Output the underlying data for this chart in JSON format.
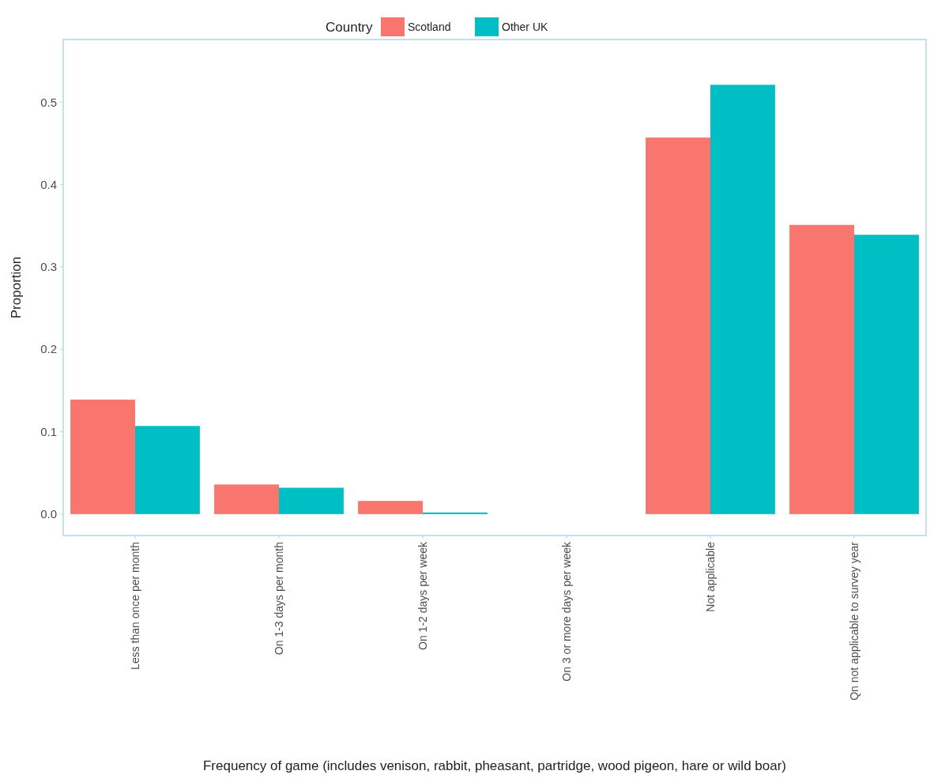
{
  "chart_data": {
    "type": "bar",
    "xlabel": "Frequency of game (includes venison, rabbit, pheasant, partridge, wood pigeon, hare or wild boar)",
    "ylabel": "Proportion",
    "legend_title": "Country",
    "legend": "top",
    "categories": [
      "Less than once per month",
      "On 1-3 days per month",
      "On 1-2 days per week",
      "On 3 or more days per week",
      "Not applicable",
      "Qn not applicable to survey year"
    ],
    "series": [
      {
        "name": "Scotland",
        "color": "#f8766d",
        "values": [
          0.139,
          0.036,
          0.016,
          0,
          0.457,
          0.351
        ]
      },
      {
        "name": "Other UK",
        "color": "#00bfc4",
        "values": [
          0.107,
          0.032,
          0.002,
          0,
          0.521,
          0.339
        ]
      }
    ],
    "ylim": [
      -0.026,
      0.576
    ],
    "yticks": [
      {
        "value": 0,
        "label": "0.0"
      },
      0.1,
      0.2,
      0.3,
      0.4,
      0.5
    ],
    "grid": false
  }
}
